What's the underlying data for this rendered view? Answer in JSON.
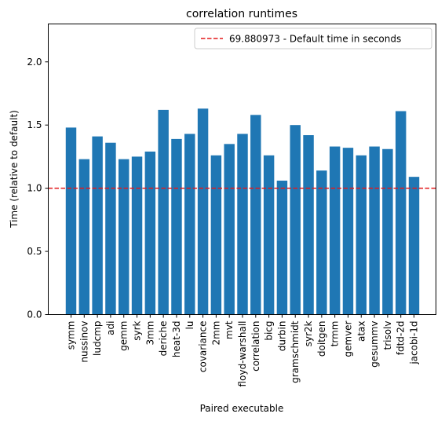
{
  "chart_data": {
    "type": "bar",
    "title": "correlation runtimes",
    "xlabel": "Paired executable",
    "ylabel": "Time (relative to default)",
    "ylim": [
      0,
      2.3
    ],
    "yticks": [
      "0.0",
      "0.5",
      "1.0",
      "1.5",
      "2.0"
    ],
    "ytick_values": [
      0,
      0.5,
      1.0,
      1.5,
      2.0
    ],
    "categories": [
      "symm",
      "nussinov",
      "ludcmp",
      "adi",
      "gemm",
      "syrk",
      "3mm",
      "deriche",
      "heat-3d",
      "lu",
      "covariance",
      "2mm",
      "mvt",
      "floyd-warshall",
      "correlation",
      "bicg",
      "durbin",
      "gramschmidt",
      "syr2k",
      "doitgen",
      "trmm",
      "gemver",
      "atax",
      "gesummv",
      "trisolv",
      "fdtd-2d",
      "jacobi-1d"
    ],
    "values": [
      1.48,
      1.23,
      1.41,
      1.36,
      1.23,
      1.25,
      1.29,
      1.62,
      1.39,
      1.43,
      1.63,
      1.26,
      1.35,
      1.43,
      1.58,
      1.26,
      1.06,
      1.5,
      1.42,
      1.14,
      1.33,
      1.32,
      1.26,
      1.33,
      1.31,
      1.61,
      1.09
    ],
    "reference_line": {
      "value": 1.0,
      "color": "#e31a1c",
      "style": "dashed"
    },
    "legend": {
      "label": "69.880973 - Default time in seconds",
      "position": "top-right"
    },
    "bar_color": "#1f77b4"
  }
}
